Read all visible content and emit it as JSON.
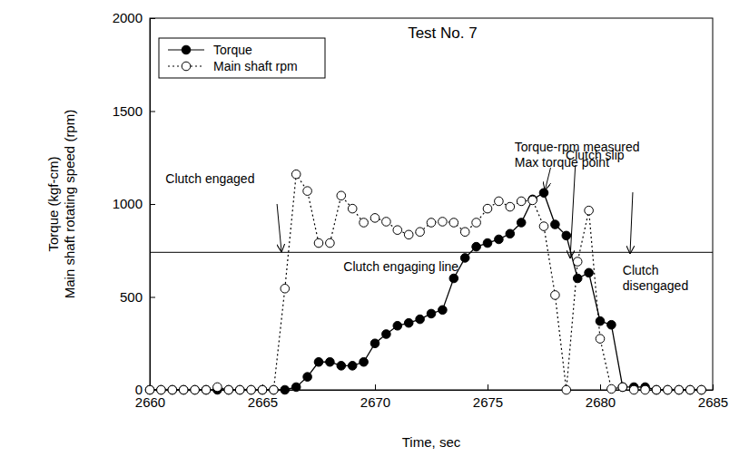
{
  "chart_data": {
    "type": "line",
    "title": "Test No. 7",
    "x_label": "Time, sec",
    "y_label": [
      "Torque (kgf-cm)",
      "Main shaft rotating speed (rpm)"
    ],
    "x": [
      2660,
      2660.5,
      2661,
      2661.5,
      2662,
      2662.5,
      2663,
      2663.5,
      2664,
      2664.5,
      2665,
      2665.5,
      2666,
      2666.5,
      2667,
      2667.5,
      2668,
      2668.5,
      2669,
      2669.5,
      2670,
      2670.5,
      2671,
      2671.5,
      2672,
      2672.5,
      2673,
      2673.5,
      2674,
      2674.5,
      2675,
      2675.5,
      2676,
      2676.5,
      2677,
      2677.5,
      2678,
      2678.5,
      2679,
      2679.5,
      2680,
      2680.5,
      2681,
      2681.5,
      2682,
      2682.5,
      2683,
      2683.5,
      2684,
      2684.5
    ],
    "series": [
      {
        "name": "Torque",
        "color": "#000000",
        "marker": "circle",
        "line_style": "solid",
        "values": [
          0,
          0,
          0,
          0,
          0,
          0,
          0,
          0,
          0,
          0,
          0,
          0,
          0,
          15,
          70,
          150,
          150,
          130,
          130,
          150,
          250,
          300,
          345,
          360,
          380,
          410,
          430,
          600,
          710,
          770,
          790,
          810,
          840,
          900,
          1025,
          1060,
          890,
          830,
          600,
          630,
          370,
          350,
          15,
          15,
          15,
          0,
          0,
          0,
          0,
          0
        ]
      },
      {
        "name": "Main shaft rpm",
        "color": "#000000",
        "marker": "open_circle",
        "line_style": "dotted",
        "values": [
          0,
          0,
          0,
          0,
          0,
          0,
          15,
          0,
          0,
          0,
          0,
          0,
          545,
          1160,
          1070,
          790,
          790,
          1045,
          975,
          900,
          925,
          905,
          860,
          835,
          850,
          900,
          905,
          900,
          850,
          900,
          975,
          1015,
          985,
          1015,
          1020,
          880,
          510,
          0,
          690,
          965,
          275,
          5,
          15,
          0,
          0,
          0,
          0,
          0,
          0,
          0
        ]
      }
    ],
    "xlim": [
      2660,
      2685
    ],
    "xticks": [
      2660,
      2665,
      2670,
      2675,
      2680,
      2685
    ],
    "ylim": [
      0,
      2000
    ],
    "yticks": [
      0,
      500,
      1000,
      1500,
      2000
    ],
    "legend": "upper left",
    "grid": false,
    "hlines": [
      {
        "y": 740,
        "label": "Clutch engaging line",
        "text_x": 2668.6,
        "text_y": 639
      }
    ],
    "annotations": [
      {
        "text": [
          "Clutch engaged"
        ],
        "x": 2665.85,
        "y": 741,
        "arrow_from": [
          2665.65,
          1000
        ],
        "text_x": 2660.7,
        "text_y": 1112
      },
      {
        "text": [
          "Torque-rpm measured",
          "Max torque point"
        ],
        "x": 2677.55,
        "y": 1073,
        "arrow_from": [
          2677.8,
          1195
        ],
        "text_x": 2676.2,
        "text_y": 1283
      },
      {
        "text": [
          "Clutch slip"
        ],
        "x": 2678.67,
        "y": 707,
        "arrow_from": [
          2678.9,
          1210
        ],
        "text_x": 2678.47,
        "text_y": 1239
      },
      {
        "text": [
          "Clutch",
          "disengaged"
        ],
        "x": 2681.33,
        "y": 732,
        "arrow_from": [
          2681.45,
          1063
        ],
        "text_x": 2681.0,
        "text_y": 620
      }
    ]
  }
}
